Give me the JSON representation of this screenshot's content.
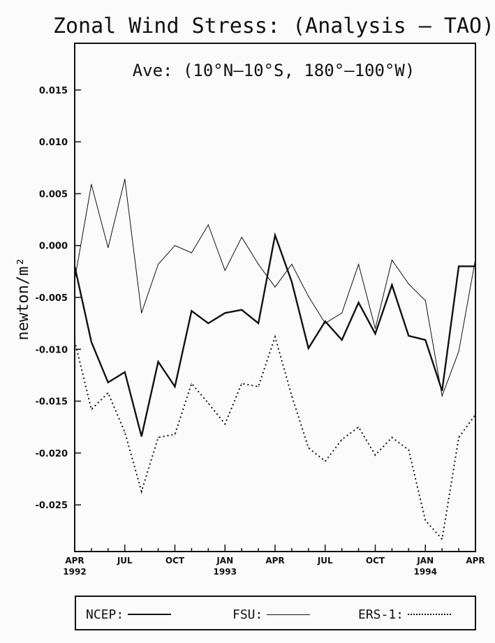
{
  "chart_data": {
    "type": "line",
    "title": "Zonal Wind Stress: (Analysis – TAO)",
    "subtitle": "Ave: (10°N–10°S, 180°–100°W)",
    "ylabel": "newton/m²",
    "xlabel": "",
    "ylim": [
      -0.0295,
      0.0195
    ],
    "yticks": [
      0.015,
      0.01,
      0.005,
      0.0,
      -0.005,
      -0.01,
      -0.015,
      -0.02,
      -0.025
    ],
    "ytick_labels": [
      "0.015",
      "0.010",
      "0.005",
      "0.000",
      "-0.005",
      "-0.010",
      "-0.015",
      "-0.020",
      "-0.025"
    ],
    "xlim": [
      0,
      24
    ],
    "xticks": [
      {
        "x": 0,
        "label": "APR",
        "year": "1992"
      },
      {
        "x": 3,
        "label": "JUL",
        "year": ""
      },
      {
        "x": 6,
        "label": "OCT",
        "year": ""
      },
      {
        "x": 9,
        "label": "JAN",
        "year": "1993"
      },
      {
        "x": 12,
        "label": "APR",
        "year": ""
      },
      {
        "x": 15,
        "label": "JUL",
        "year": ""
      },
      {
        "x": 18,
        "label": "OCT",
        "year": ""
      },
      {
        "x": 21,
        "label": "JAN",
        "year": "1994"
      },
      {
        "x": 24,
        "label": "APR",
        "year": ""
      }
    ],
    "grid": false,
    "legend_position": "bottom",
    "x": [
      0,
      1,
      2,
      3,
      4,
      5,
      6,
      7,
      8,
      9,
      10,
      11,
      12,
      13,
      14,
      15,
      16,
      17,
      18,
      19,
      20,
      21,
      22,
      23,
      24
    ],
    "series": [
      {
        "name": "NCEP:",
        "style": "thick",
        "values": [
          -0.002,
          -0.0093,
          -0.0132,
          -0.0122,
          -0.0184,
          -0.0112,
          -0.0136,
          -0.0063,
          -0.0075,
          -0.0065,
          -0.0062,
          -0.0075,
          0.001,
          -0.0035,
          -0.0099,
          -0.0073,
          -0.0091,
          -0.0055,
          -0.0085,
          -0.0038,
          -0.0087,
          -0.0091,
          -0.014,
          -0.002,
          -0.002
        ]
      },
      {
        "name": "FSU:",
        "style": "thin",
        "values": [
          -0.0033,
          0.0059,
          -0.0002,
          0.0064,
          -0.0065,
          -0.0018,
          0.0,
          -0.0007,
          0.002,
          -0.0024,
          0.0008,
          -0.0018,
          -0.004,
          -0.0018,
          -0.0049,
          -0.0075,
          -0.0065,
          -0.0018,
          -0.008,
          -0.0014,
          -0.0037,
          -0.0053,
          -0.0145,
          -0.0102,
          -0.0013
        ]
      },
      {
        "name": "ERS-1:",
        "style": "dotted",
        "values": [
          -0.0092,
          -0.0158,
          -0.0142,
          -0.018,
          -0.0237,
          -0.0185,
          -0.0182,
          -0.0133,
          -0.0152,
          -0.0172,
          -0.0133,
          -0.0136,
          -0.0088,
          -0.0145,
          -0.0195,
          -0.0208,
          -0.0187,
          -0.0175,
          -0.0202,
          -0.0185,
          -0.0197,
          -0.0265,
          -0.0283,
          -0.0185,
          -0.0163
        ]
      }
    ]
  }
}
